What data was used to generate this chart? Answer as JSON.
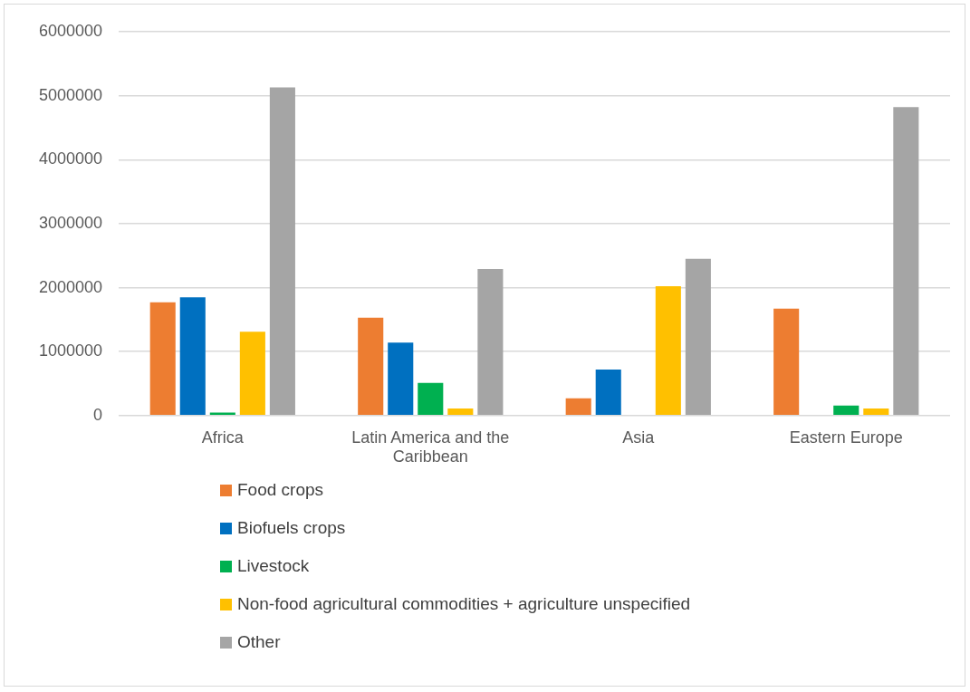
{
  "chart_data": {
    "type": "bar",
    "categories": [
      "Africa",
      "Latin America and the Caribbean",
      "Asia",
      "Eastern Europe"
    ],
    "series": [
      {
        "name": "Food crops",
        "color": "#ed7d31",
        "values": [
          1770000,
          1530000,
          270000,
          1670000
        ]
      },
      {
        "name": "Biofuels crops",
        "color": "#0070c0",
        "values": [
          1850000,
          1140000,
          720000,
          null
        ]
      },
      {
        "name": "Livestock",
        "color": "#00b050",
        "values": [
          45000,
          510000,
          null,
          155000
        ]
      },
      {
        "name": "Non-food agricultural commodities + agriculture unspecified",
        "color": "#ffc000",
        "values": [
          1310000,
          110000,
          2020000,
          110000
        ]
      },
      {
        "name": "Other",
        "color": "#a5a5a5",
        "values": [
          5130000,
          2290000,
          2450000,
          4820000
        ]
      }
    ],
    "ylim": [
      0,
      6000000
    ],
    "yticks": [
      0,
      1000000,
      2000000,
      3000000,
      4000000,
      5000000,
      6000000
    ],
    "grid": "y",
    "legend": "bottom"
  }
}
